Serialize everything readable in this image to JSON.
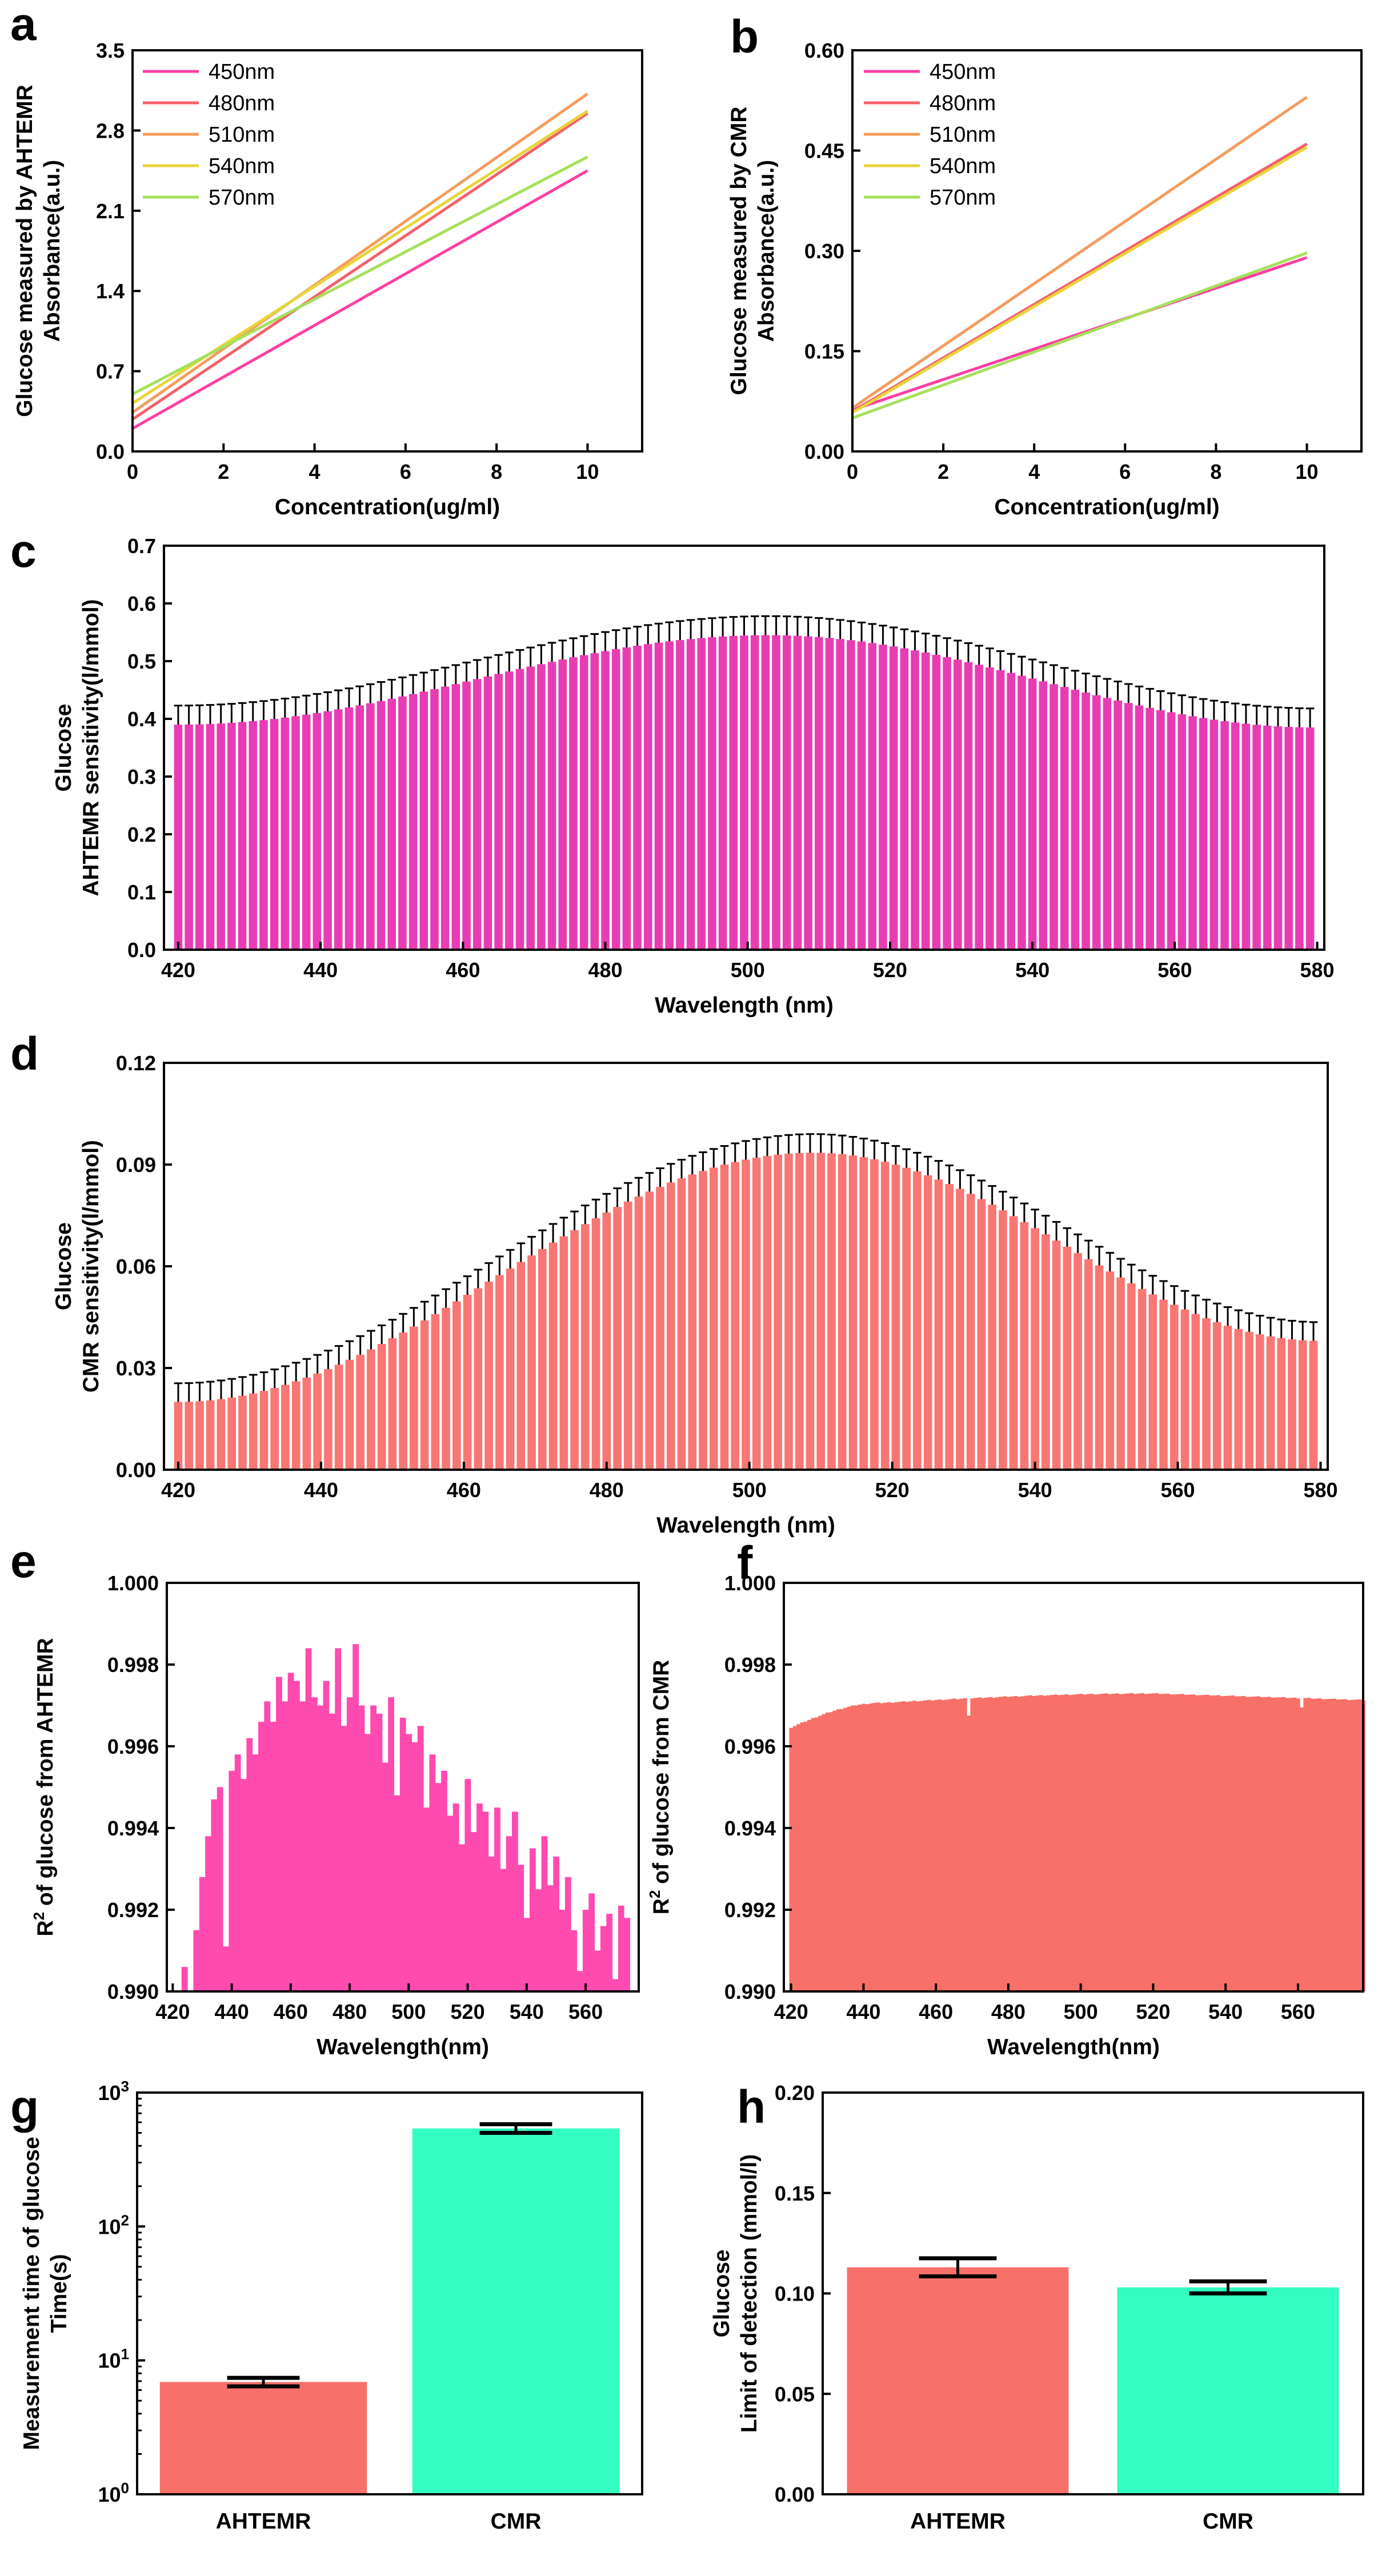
{
  "chart_data": [
    {
      "panel": "a",
      "type": "line",
      "xlabel": "Concentration(ug/ml)",
      "ylabel": [
        "Glucose measured by AHTEMR",
        "Absorbance(a.u.)"
      ],
      "xlim": [
        0,
        11.2
      ],
      "ylim": [
        0,
        3.5
      ],
      "xticks": [
        0,
        2,
        4,
        6,
        8,
        10
      ],
      "yticks": [
        0.0,
        0.7,
        1.4,
        2.1,
        2.8,
        3.5
      ],
      "ytick_labels": [
        "0.0",
        "0.7",
        "1.4",
        "2.1",
        "2.8",
        "3.5"
      ],
      "legend_position": "top-left",
      "series": [
        {
          "name": "450nm",
          "color": "#ff3fa4",
          "x": [
            0,
            10
          ],
          "y": [
            0.2,
            2.45
          ]
        },
        {
          "name": "480nm",
          "color": "#f4616a",
          "x": [
            0,
            10
          ],
          "y": [
            0.28,
            2.95
          ]
        },
        {
          "name": "510nm",
          "color": "#f59c5e",
          "x": [
            0,
            10
          ],
          "y": [
            0.34,
            3.12
          ]
        },
        {
          "name": "540nm",
          "color": "#e8d53a",
          "x": [
            0,
            10
          ],
          "y": [
            0.42,
            2.97
          ]
        },
        {
          "name": "570nm",
          "color": "#a6e05a",
          "x": [
            0,
            10
          ],
          "y": [
            0.5,
            2.57
          ]
        }
      ]
    },
    {
      "panel": "b",
      "type": "line",
      "xlabel": "Concentration(ug/ml)",
      "ylabel": [
        "Glucose measured by CMR",
        "Absorbance(a.u.)"
      ],
      "xlim": [
        0,
        11.2
      ],
      "ylim": [
        0,
        0.6
      ],
      "xticks": [
        0,
        2,
        4,
        6,
        8,
        10
      ],
      "yticks": [
        0.0,
        0.15,
        0.3,
        0.45,
        0.6
      ],
      "ytick_labels": [
        "0.00",
        "0.15",
        "0.30",
        "0.45",
        "0.60"
      ],
      "legend_position": "top-left",
      "series": [
        {
          "name": "450nm",
          "color": "#ff3fa4",
          "x": [
            0,
            10
          ],
          "y": [
            0.062,
            0.29
          ]
        },
        {
          "name": "480nm",
          "color": "#f4616a",
          "x": [
            0,
            10
          ],
          "y": [
            0.06,
            0.46
          ]
        },
        {
          "name": "510nm",
          "color": "#f59c5e",
          "x": [
            0,
            10
          ],
          "y": [
            0.065,
            0.53
          ]
        },
        {
          "name": "540nm",
          "color": "#e8d53a",
          "x": [
            0,
            10
          ],
          "y": [
            0.058,
            0.455
          ]
        },
        {
          "name": "570nm",
          "color": "#a6e05a",
          "x": [
            0,
            10
          ],
          "y": [
            0.05,
            0.297
          ]
        }
      ]
    },
    {
      "panel": "c",
      "type": "bar",
      "xlabel": "Wavelength (nm)",
      "ylabel": [
        "Glucose",
        "AHTEMR sensitivity(l/mmol)"
      ],
      "xlim": [
        418,
        581
      ],
      "ylim": [
        0,
        0.7
      ],
      "xticks": [
        420,
        440,
        460,
        480,
        500,
        520,
        540,
        560,
        580
      ],
      "yticks": [
        0,
        0.1,
        0.2,
        0.3,
        0.4,
        0.5,
        0.6,
        0.7
      ],
      "ytick_labels": [
        "0.0",
        "0.1",
        "0.2",
        "0.3",
        "0.4",
        "0.5",
        "0.6",
        "0.7"
      ],
      "bar_color": "#e83cb4",
      "profile": {
        "x_start": 420,
        "x_end": 580,
        "step": 1.5,
        "peak_x": 503,
        "peak": 0.545,
        "base_left": 0.39,
        "base_right": 0.385,
        "error": 0.033
      }
    },
    {
      "panel": "d",
      "type": "bar",
      "xlabel": "Wavelength (nm)",
      "ylabel": [
        "Glucose",
        "CMR sensitivity(l/mmol)"
      ],
      "xlim": [
        418,
        581
      ],
      "ylim": [
        0,
        0.12
      ],
      "xticks": [
        420,
        440,
        460,
        480,
        500,
        520,
        540,
        560,
        580
      ],
      "yticks": [
        0,
        0.03,
        0.06,
        0.09,
        0.12
      ],
      "ytick_labels": [
        "0.00",
        "0.03",
        "0.06",
        "0.09",
        "0.12"
      ],
      "bar_color": "#f87673",
      "profile": {
        "x_start": 420,
        "x_end": 580,
        "step": 1.5,
        "peak_x": 509,
        "peak": 0.0935,
        "base_left": 0.02,
        "base_right": 0.038,
        "error": 0.0055
      }
    },
    {
      "panel": "e",
      "type": "bar",
      "xlabel": "Wavelength(nm)",
      "ylabel": [
        "R2 of glucose from AHTEMR"
      ],
      "xlim": [
        418,
        578
      ],
      "ylim": [
        0.99,
        1.0
      ],
      "xticks": [
        420,
        440,
        460,
        480,
        500,
        520,
        540,
        560
      ],
      "yticks": [
        0.99,
        0.992,
        0.994,
        0.996,
        0.998,
        1.0
      ],
      "ytick_labels": [
        "0.990",
        "0.992",
        "0.994",
        "0.996",
        "0.998",
        "1.000"
      ],
      "bar_color": "#ff4ab0",
      "x": [
        424,
        428,
        430,
        432,
        434,
        436,
        438,
        440,
        442,
        444,
        446,
        448,
        450,
        452,
        454,
        456,
        458,
        460,
        462,
        464,
        466,
        468,
        470,
        472,
        474,
        476,
        478,
        480,
        482,
        484,
        486,
        488,
        490,
        492,
        494,
        496,
        498,
        500,
        502,
        504,
        506,
        508,
        510,
        512,
        514,
        516,
        518,
        520,
        522,
        524,
        526,
        528,
        530,
        532,
        534,
        536,
        538,
        540,
        542,
        544,
        546,
        548,
        550,
        552,
        554,
        556,
        558,
        560,
        562,
        564,
        566,
        568,
        570,
        572,
        574
      ],
      "values": [
        0.9906,
        0.9915,
        0.9928,
        0.9938,
        0.9947,
        0.995,
        0.9911,
        0.9954,
        0.9958,
        0.9952,
        0.9962,
        0.9958,
        0.9966,
        0.9971,
        0.9966,
        0.9977,
        0.9971,
        0.9978,
        0.9976,
        0.9971,
        0.9984,
        0.9972,
        0.997,
        0.9976,
        0.9968,
        0.9984,
        0.9965,
        0.9972,
        0.9985,
        0.997,
        0.9963,
        0.997,
        0.9968,
        0.9956,
        0.9972,
        0.9948,
        0.9967,
        0.9963,
        0.9961,
        0.9965,
        0.9945,
        0.9958,
        0.9951,
        0.9954,
        0.9943,
        0.9946,
        0.9936,
        0.9952,
        0.9939,
        0.9946,
        0.9944,
        0.9933,
        0.9945,
        0.993,
        0.9938,
        0.9944,
        0.9931,
        0.9918,
        0.9935,
        0.9925,
        0.9938,
        0.9926,
        0.9933,
        0.992,
        0.9928,
        0.9915,
        0.9905,
        0.992,
        0.9924,
        0.991,
        0.9916,
        0.9919,
        0.9903,
        0.9921,
        0.9918
      ]
    },
    {
      "panel": "f",
      "type": "bar",
      "xlabel": "Wavelength(nm)",
      "ylabel": [
        "R2 of glucose from CMR"
      ],
      "xlim": [
        418,
        578
      ],
      "ylim": [
        0.99,
        1.0
      ],
      "xticks": [
        420,
        440,
        460,
        480,
        500,
        520,
        540,
        560
      ],
      "yticks": [
        0.99,
        0.992,
        0.994,
        0.996,
        0.998,
        1.0
      ],
      "ytick_labels": [
        "0.990",
        "0.992",
        "0.994",
        "0.996",
        "0.998",
        "1.000"
      ],
      "bar_color": "#f87068",
      "profile": {
        "x_start": 420,
        "x_end": 578,
        "step": 1,
        "start_value": 0.99645,
        "plateau": 0.99705,
        "peak": 0.99728,
        "end_value": 0.99712,
        "dips": [
          {
            "x": 469,
            "value": 0.99675
          },
          {
            "x": 561,
            "value": 0.99695
          }
        ]
      }
    },
    {
      "panel": "g",
      "type": "bar",
      "xlabel": "",
      "ylabel": [
        "Measurement time of glucose",
        "Time(s)"
      ],
      "yscale": "log",
      "ylim": [
        1,
        1000
      ],
      "ytick_labels": [
        {
          "base": "10",
          "exp": "0"
        },
        {
          "base": "10",
          "exp": "1"
        },
        {
          "base": "10",
          "exp": "2"
        },
        {
          "base": "10",
          "exp": "3"
        }
      ],
      "categories": [
        "AHTEMR",
        "CMR"
      ],
      "values": [
        6.9,
        540
      ],
      "errors": [
        0.5,
        40
      ],
      "colors": [
        "#f8706a",
        "#34fdc1"
      ]
    },
    {
      "panel": "h",
      "type": "bar",
      "xlabel": "",
      "ylabel": [
        "Glucose",
        "Limit of detection (mmol/l)"
      ],
      "ylim": [
        0,
        0.2
      ],
      "yticks": [
        0,
        0.05,
        0.1,
        0.15,
        0.2
      ],
      "ytick_labels": [
        "0.00",
        "0.05",
        "0.10",
        "0.15",
        "0.20"
      ],
      "categories": [
        "AHTEMR",
        "CMR"
      ],
      "values": [
        0.113,
        0.103
      ],
      "errors": [
        0.0045,
        0.003
      ],
      "colors": [
        "#f8706a",
        "#34fdc1"
      ]
    }
  ]
}
